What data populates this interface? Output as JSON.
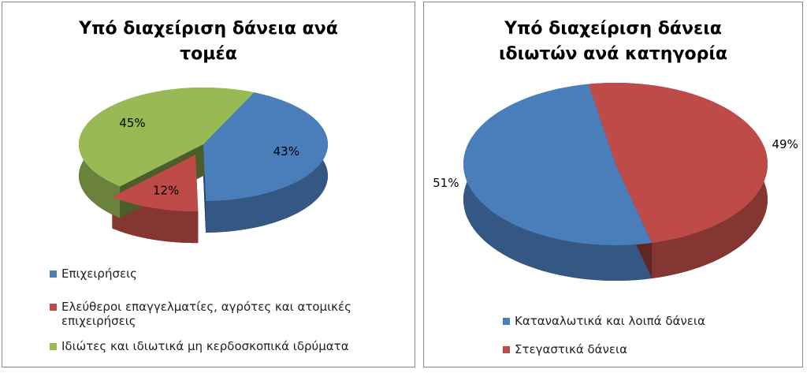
{
  "chart_data": [
    {
      "type": "pie",
      "title": "Υπό διαχείριση δάνεια ανά τομέα",
      "categories": [
        "Επιχειρήσεις",
        "Ελεύθεροι επαγγελματίες, αγρότες και ατομικές επιχειρήσεις",
        "Ιδιώτες και ιδιωτικά μη κερδοσκοπικά ιδρύματα"
      ],
      "values": [
        43,
        12,
        45
      ],
      "value_labels": [
        "43%",
        "12%",
        "45%"
      ],
      "colors": [
        "#4a7ebb",
        "#be4b48",
        "#98b954"
      ],
      "legend": "bottom"
    },
    {
      "type": "pie",
      "title": "Υπό διαχείριση δάνεια ιδιωτών ανά κατηγορία",
      "categories": [
        "Καταναλωτικά και λοιπά δάνεια",
        "Στεγαστικά δάνεια"
      ],
      "values": [
        51,
        49
      ],
      "value_labels": [
        "51%",
        "49%"
      ],
      "colors": [
        "#4a7ebb",
        "#be4b48"
      ],
      "legend": "bottom"
    }
  ]
}
